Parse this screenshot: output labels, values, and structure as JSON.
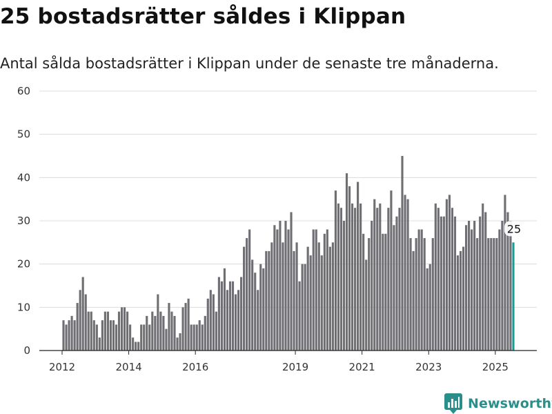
{
  "title": "25 bostadsrätter såldes i Klippan",
  "subtitle": "Antal sålda bostadsrätter i Klippan under de senaste tre månaderna.",
  "brand": {
    "name": "Newsworthy",
    "color": "#2a8f8a",
    "icon": "chart-bubble-icon"
  },
  "colors": {
    "bar": "#6f6e73",
    "highlight": "#1a9c94",
    "grid": "#dcdcdc"
  },
  "chart_data": {
    "type": "bar",
    "start": "2012-01",
    "x_ticks": [
      "2012",
      "2014",
      "2016",
      "2019",
      "2021",
      "2023",
      "2025"
    ],
    "y_ticks": [
      0,
      10,
      20,
      30,
      40,
      50,
      60
    ],
    "ylim": [
      0,
      60
    ],
    "grid": true,
    "highlight_last": true,
    "highlight_label": "25",
    "values": [
      7,
      6,
      7,
      8,
      7,
      11,
      14,
      17,
      13,
      9,
      9,
      7,
      6,
      3,
      7,
      9,
      9,
      7,
      7,
      6,
      9,
      10,
      10,
      9,
      6,
      3,
      2,
      2,
      6,
      6,
      8,
      6,
      9,
      8,
      13,
      9,
      8,
      5,
      11,
      9,
      8,
      3,
      4,
      10,
      11,
      12,
      6,
      6,
      6,
      7,
      6,
      8,
      12,
      14,
      13,
      9,
      17,
      16,
      19,
      14,
      16,
      16,
      13,
      14,
      17,
      24,
      26,
      28,
      21,
      18,
      14,
      20,
      19,
      23,
      23,
      25,
      29,
      28,
      30,
      25,
      30,
      28,
      32,
      23,
      25,
      16,
      20,
      20,
      24,
      22,
      28,
      28,
      25,
      22,
      27,
      28,
      24,
      25,
      37,
      34,
      33,
      30,
      41,
      38,
      34,
      33,
      39,
      34,
      27,
      21,
      26,
      30,
      35,
      33,
      34,
      27,
      27,
      33,
      37,
      29,
      31,
      33,
      45,
      36,
      35,
      26,
      23,
      26,
      28,
      28,
      26,
      19,
      20,
      26,
      34,
      33,
      31,
      31,
      35,
      36,
      33,
      31,
      22,
      23,
      24,
      29,
      30,
      28,
      30,
      26,
      31,
      34,
      32,
      26,
      26,
      26,
      26,
      28,
      30,
      36,
      32,
      30,
      25
    ]
  }
}
